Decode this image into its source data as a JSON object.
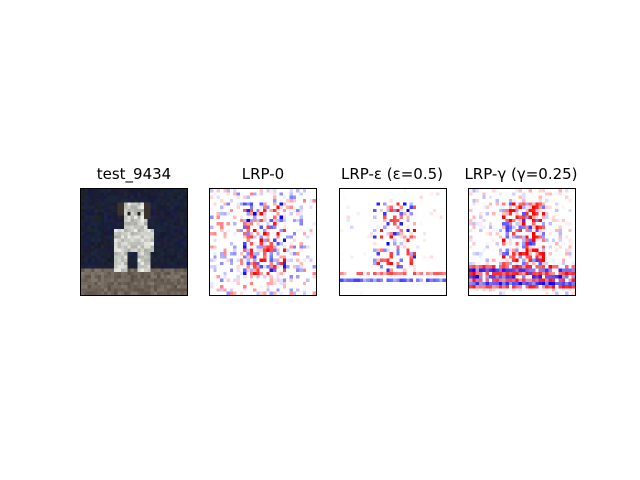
{
  "panels": [
    {
      "title": "test_9434",
      "kind": "image"
    },
    {
      "title": "LRP-0",
      "kind": "heatmap",
      "seed": 11,
      "style": "noisy"
    },
    {
      "title": "LRP-ε (ε=0.5)",
      "kind": "heatmap",
      "seed": 23,
      "style": "sparse"
    },
    {
      "title": "LRP-γ (γ=0.25)",
      "kind": "heatmap",
      "seed": 37,
      "style": "dense"
    }
  ],
  "colors": {
    "positive": "#ff0000",
    "negative": "#0000ff",
    "neutral": "#ffffff"
  }
}
